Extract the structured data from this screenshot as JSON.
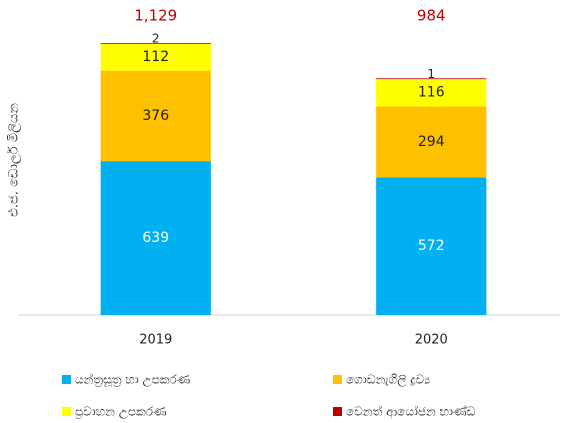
{
  "chart_data": {
    "type": "stacked_bar",
    "y_label": "එ.ජ. ඩොලර් මිලියන",
    "categories": [
      "2019",
      "2020"
    ],
    "series": [
      {
        "name": "යන්ත්‍රසූත්‍ර හා උපකරණ",
        "color": "#00b0f0",
        "values": [
          639,
          572
        ]
      },
      {
        "name": "ගොඩනැගිලි ද්‍රව්‍ය",
        "color": "#ffc000",
        "values": [
          376,
          294
        ]
      },
      {
        "name": "ප්‍රවාහන උපකරණ",
        "color": "#ffff00",
        "values": [
          112,
          116
        ]
      },
      {
        "name": "වෙනත් ආයෝජන භාණ්ඩ",
        "color": "#c00000",
        "values": [
          2,
          1
        ]
      }
    ],
    "totals": [
      1129,
      984
    ],
    "totals_labels": [
      "1,129",
      "984"
    ],
    "ylim": [
      0,
      1300
    ]
  }
}
